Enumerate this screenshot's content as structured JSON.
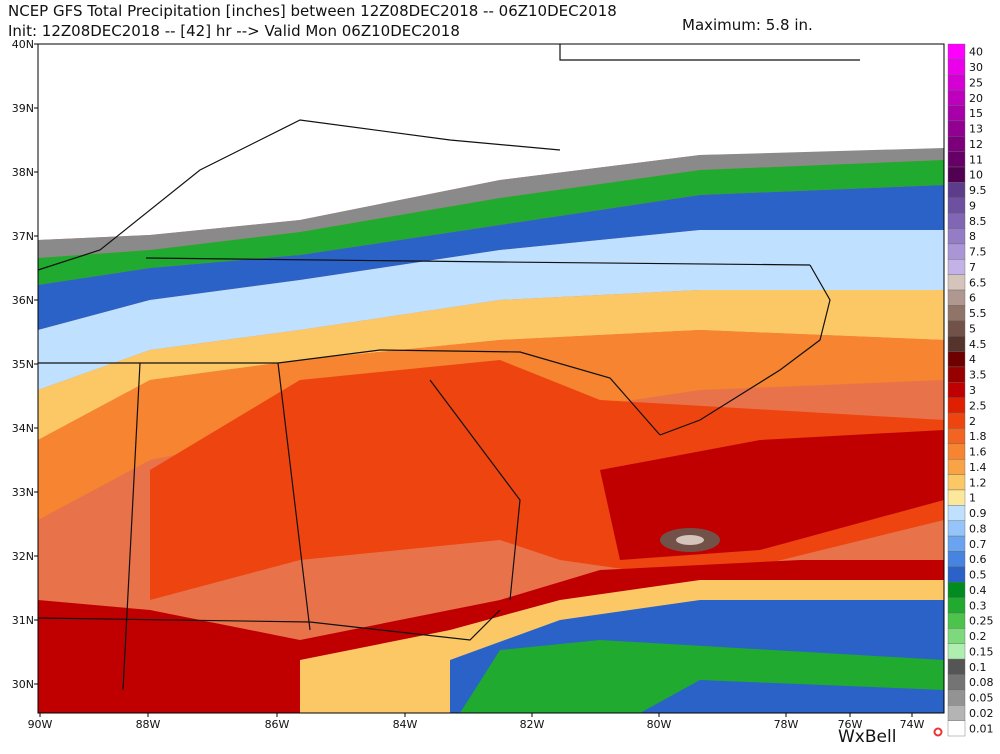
{
  "header": {
    "line1": "NCEP GFS Total Precipitation [inches] between 12Z08DEC2018 -- 06Z10DEC2018",
    "line2": "Init: 12Z08DEC2018 -- [42] hr --> Valid Mon 06Z10DEC2018",
    "maximum": "Maximum: 5.8 in."
  },
  "map": {
    "lat_labels": [
      "40N",
      "39N",
      "38N",
      "37N",
      "36N",
      "35N",
      "34N",
      "33N",
      "32N",
      "31N",
      "30N"
    ],
    "lon_labels": [
      "90W",
      "88W",
      "86W",
      "84W",
      "82W",
      "80W",
      "78W",
      "76W",
      "74W"
    ]
  },
  "legend": {
    "items": [
      {
        "label": "40",
        "color": "#ff00ff"
      },
      {
        "label": "30",
        "color": "#ea00ea"
      },
      {
        "label": "25",
        "color": "#d400d4"
      },
      {
        "label": "20",
        "color": "#be00be"
      },
      {
        "label": "15",
        "color": "#a800a8"
      },
      {
        "label": "13",
        "color": "#920092"
      },
      {
        "label": "12",
        "color": "#7c007c"
      },
      {
        "label": "11",
        "color": "#660066"
      },
      {
        "label": "10",
        "color": "#520052"
      },
      {
        "label": "9.5",
        "color": "#5e3c8c"
      },
      {
        "label": "9",
        "color": "#6e50a0"
      },
      {
        "label": "8.5",
        "color": "#8066b4"
      },
      {
        "label": "8",
        "color": "#947cc6"
      },
      {
        "label": "7.5",
        "color": "#aa96d6"
      },
      {
        "label": "7",
        "color": "#c2b2e6"
      },
      {
        "label": "6.5",
        "color": "#d4c4bc"
      },
      {
        "label": "6",
        "color": "#b09890"
      },
      {
        "label": "5.5",
        "color": "#907468"
      },
      {
        "label": "5",
        "color": "#725248"
      },
      {
        "label": "4.5",
        "color": "#56342c"
      },
      {
        "label": "4",
        "color": "#6e0000"
      },
      {
        "label": "3.5",
        "color": "#980000"
      },
      {
        "label": "3",
        "color": "#c00000"
      },
      {
        "label": "2.5",
        "color": "#de2000"
      },
      {
        "label": "2",
        "color": "#ee4410"
      },
      {
        "label": "1.8",
        "color": "#f26420"
      },
      {
        "label": "1.6",
        "color": "#f68430"
      },
      {
        "label": "1.4",
        "color": "#f8a446"
      },
      {
        "label": "1.2",
        "color": "#fcc866"
      },
      {
        "label": "1",
        "color": "#fde79a"
      },
      {
        "label": "0.9",
        "color": "#bfe0ff"
      },
      {
        "label": "0.8",
        "color": "#94c4fa"
      },
      {
        "label": "0.7",
        "color": "#6aa4f0"
      },
      {
        "label": "0.6",
        "color": "#4684e0"
      },
      {
        "label": "0.5",
        "color": "#2a62c8"
      },
      {
        "label": "0.4",
        "color": "#008c1e"
      },
      {
        "label": "0.3",
        "color": "#20aa30"
      },
      {
        "label": "0.25",
        "color": "#4cc44c"
      },
      {
        "label": "0.2",
        "color": "#7cda7c"
      },
      {
        "label": "0.15",
        "color": "#aeeeae"
      },
      {
        "label": "0.1",
        "color": "#555555"
      },
      {
        "label": "0.08",
        "color": "#747474"
      },
      {
        "label": "0.05",
        "color": "#939393"
      },
      {
        "label": "0.02",
        "color": "#b4b4b4"
      },
      {
        "label": "0.01",
        "color": "#ffffff"
      }
    ]
  },
  "logo": "WxBell"
}
